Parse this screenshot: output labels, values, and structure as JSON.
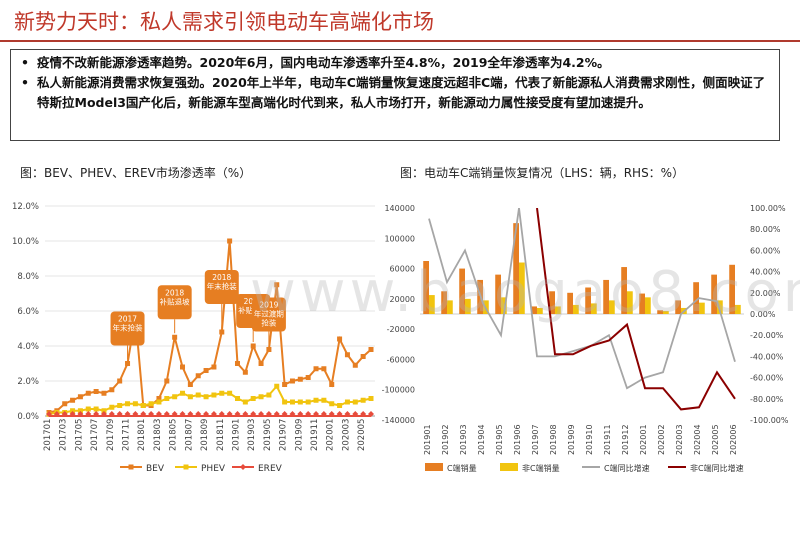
{
  "page": {
    "title": "新势力天时：私人需求引领电动车高端化市场",
    "bullets": [
      "疫情不改新能源渗透率趋势。2020年6月，国内电动车渗透率升至4.8%，2019全年渗透率为4.2%。",
      "私人新能源消费需求恢复强劲。2020年上半年，电动车C端销量恢复速度远超非C端，代表了新能源私人消费需求刚性，侧面映证了特斯拉Model3国产化后，新能源车型高端化时代到来，私人市场打开，新能源动力属性接受度有望加速提升。"
    ],
    "watermark": "www.baogao8.com",
    "colors": {
      "accent": "#c0392b",
      "bev": "#e67e22",
      "phev": "#f1c40f",
      "erev": "#e74c3c",
      "grey": "#a6a6a6",
      "darkred": "#8b0000"
    }
  },
  "chart_data": [
    {
      "type": "line",
      "title": "图：BEV、PHEV、EREV市场渗透率（%）",
      "x": [
        "201701",
        "201702",
        "201703",
        "201704",
        "201705",
        "201706",
        "201707",
        "201708",
        "201709",
        "201710",
        "201711",
        "201712",
        "201801",
        "201802",
        "201803",
        "201804",
        "201805",
        "201806",
        "201807",
        "201808",
        "201809",
        "201810",
        "201811",
        "201812",
        "201901",
        "201902",
        "201903",
        "201904",
        "201905",
        "201906",
        "201907",
        "201908",
        "201909",
        "201910",
        "201911",
        "201912",
        "202001",
        "202002",
        "202003",
        "202004",
        "202005",
        "202006"
      ],
      "xticks": [
        "201701",
        "201703",
        "201705",
        "201707",
        "201709",
        "201711",
        "201801",
        "201803",
        "201805",
        "201807",
        "201809",
        "201811",
        "201901",
        "201903",
        "201905",
        "201907",
        "201909",
        "201911",
        "202001",
        "202003",
        "202005"
      ],
      "ylim": [
        0,
        12
      ],
      "yticks": [
        "0.0%",
        "2.0%",
        "4.0%",
        "6.0%",
        "8.0%",
        "10.0%",
        "12.0%"
      ],
      "series": [
        {
          "name": "BEV",
          "values": [
            0.2,
            0.3,
            0.7,
            0.9,
            1.1,
            1.3,
            1.4,
            1.3,
            1.5,
            2.0,
            3.0,
            5.7,
            0.6,
            0.6,
            1.0,
            2.0,
            4.5,
            2.8,
            1.8,
            2.3,
            2.6,
            2.8,
            4.8,
            10.0,
            3.0,
            2.5,
            4.0,
            3.0,
            3.8,
            7.5,
            1.8,
            2.0,
            2.1,
            2.2,
            2.7,
            2.7,
            1.8,
            4.4,
            3.5,
            2.9,
            3.4,
            3.8
          ]
        },
        {
          "name": "PHEV",
          "values": [
            0.1,
            0.2,
            0.2,
            0.3,
            0.3,
            0.4,
            0.4,
            0.3,
            0.5,
            0.6,
            0.7,
            0.7,
            0.6,
            0.7,
            0.8,
            1.0,
            1.1,
            1.3,
            1.1,
            1.2,
            1.1,
            1.2,
            1.3,
            1.3,
            1.0,
            0.8,
            1.0,
            1.1,
            1.2,
            1.7,
            0.8,
            0.8,
            0.8,
            0.8,
            0.9,
            0.9,
            0.7,
            0.6,
            0.8,
            0.8,
            0.9,
            1.0
          ]
        },
        {
          "name": "EREV",
          "values": [
            0,
            0,
            0,
            0,
            0,
            0,
            0,
            0,
            0,
            0,
            0,
            0,
            0,
            0,
            0,
            0,
            0,
            0,
            0,
            0,
            0,
            0,
            0,
            0,
            0,
            0,
            0,
            0,
            0,
            0,
            0,
            0,
            0,
            0,
            0,
            0,
            0,
            0,
            0,
            0,
            0,
            0
          ]
        }
      ],
      "annotations": [
        {
          "text": "2017年末抢装",
          "x": "201711"
        },
        {
          "text": "2018补贴退坡",
          "x": "201805"
        },
        {
          "text": "2018年末抢装",
          "x": "201811"
        },
        {
          "text": "2019补贴退坡",
          "x": "201903"
        },
        {
          "text": "2019年过渡期抢装",
          "x": "201905"
        }
      ]
    },
    {
      "type": "bar",
      "title": "图：电动车C端销量恢复情况（LHS：辆，RHS：%）",
      "categories": [
        "201901",
        "201902",
        "201903",
        "201904",
        "201905",
        "201906",
        "201907",
        "201908",
        "201909",
        "201910",
        "201911",
        "201912",
        "202001",
        "202002",
        "202003",
        "202004",
        "202005",
        "202006"
      ],
      "ylim_left": [
        -140000,
        140000
      ],
      "yticks_left": [
        "-140000",
        "-100000",
        "-60000",
        "-20000",
        "20000",
        "60000",
        "100000",
        "140000"
      ],
      "ylim_right": [
        -100,
        100
      ],
      "yticks_right": [
        "-100.00%",
        "-80.00%",
        "-60.00%",
        "-40.00%",
        "-20.00%",
        "0.00%",
        "20.00%",
        "40.00%",
        "60.00%",
        "80.00%",
        "100.00%"
      ],
      "series": [
        {
          "name": "C端销量",
          "type": "bar",
          "axis": "left",
          "values": [
            70000,
            30000,
            60000,
            45000,
            52000,
            120000,
            10000,
            30000,
            28000,
            35000,
            45000,
            62000,
            27000,
            5000,
            18000,
            42000,
            52000,
            65000
          ]
        },
        {
          "name": "非C端销量",
          "type": "bar",
          "axis": "left",
          "values": [
            25000,
            18000,
            20000,
            18000,
            22000,
            68000,
            8000,
            10000,
            12000,
            14000,
            18000,
            30000,
            22000,
            4000,
            8000,
            15000,
            18000,
            12000
          ]
        },
        {
          "name": "C端同比增速",
          "type": "line",
          "axis": "right",
          "values": [
            90,
            30,
            60,
            10,
            -20,
            100,
            -40,
            -40,
            -35,
            -30,
            -20,
            -70,
            -60,
            -55,
            0,
            15,
            12,
            -45
          ]
        },
        {
          "name": "非C端同比增速",
          "type": "line",
          "axis": "right",
          "values": [
            null,
            null,
            null,
            null,
            null,
            null,
            100,
            -38,
            -38,
            -30,
            -25,
            -10,
            -70,
            -70,
            -90,
            -88,
            -55,
            -80
          ]
        }
      ]
    }
  ]
}
